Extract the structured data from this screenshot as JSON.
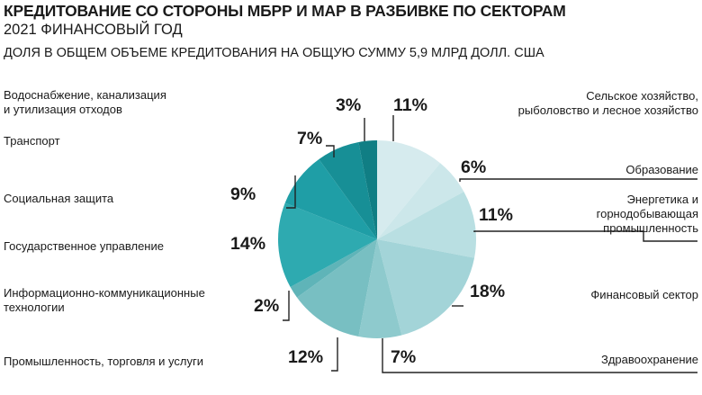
{
  "header": {
    "title": "КРЕДИТОВАНИЕ СО СТОРОНЫ МБРР И МАР В РАЗБИВКЕ ПО СЕКТОРАМ",
    "year": "2021 ФИНАНСОВЫЙ ГОД",
    "subtitle": "ДОЛЯ В ОБЩЕМ ОБЪЕМЕ КРЕДИТОВАНИЯ НА ОБЩУЮ СУММУ 5,9 МЛРД ДОЛЛ. США"
  },
  "chart_data": {
    "type": "pie",
    "title": "КРЕДИТОВАНИЕ СО СТОРОНЫ МБРР И МАР В РАЗБИВКЕ ПО СЕКТОРАМ",
    "subtitle": "ДОЛЯ В ОБЩЕМ ОБЪЕМЕ КРЕДИТОВАНИЯ НА ОБЩУЮ СУММУ 5,9 МЛРД ДОЛЛ. США",
    "unit": "%",
    "slices": [
      {
        "line1": "Сельское хозяйство,",
        "line2": "рыболовство и лесное хозяйство",
        "line3": "",
        "value": 11,
        "value_label": "11%",
        "color": "#d6ebee"
      },
      {
        "line1": "Образование",
        "line2": "",
        "line3": "",
        "value": 6,
        "value_label": "6%",
        "color": "#cce7ea"
      },
      {
        "line1": "Энергетика и",
        "line2": "горнодобывающая",
        "line3": "промышленность",
        "value": 11,
        "value_label": "11%",
        "color": "#b9dfe2"
      },
      {
        "line1": "Финансовый сектор",
        "line2": "",
        "line3": "",
        "value": 18,
        "value_label": "18%",
        "color": "#a3d4d8"
      },
      {
        "line1": "Здравоохранение",
        "line2": "",
        "line3": "",
        "value": 7,
        "value_label": "7%",
        "color": "#8ecacd"
      },
      {
        "line1": "Промышленность, торговля и услуги",
        "line2": "",
        "line3": "",
        "value": 12,
        "value_label": "12%",
        "color": "#78bfc2"
      },
      {
        "line1": "Информационно-коммуникационные",
        "line2": "технологии",
        "line3": "",
        "value": 2,
        "value_label": "2%",
        "color": "#5fb4b8"
      },
      {
        "line1": "Государственное управление",
        "line2": "",
        "line3": "",
        "value": 14,
        "value_label": "14%",
        "color": "#2eaab0"
      },
      {
        "line1": "Социальная защита",
        "line2": "",
        "line3": "",
        "value": 9,
        "value_label": "9%",
        "color": "#1f9ea6"
      },
      {
        "line1": "Транспорт",
        "line2": "",
        "line3": "",
        "value": 7,
        "value_label": "7%",
        "color": "#178f96"
      },
      {
        "line1": "Водоснабжение, канализация",
        "line2": "и утилизация отходов",
        "line3": "",
        "value": 3,
        "value_label": "3%",
        "color": "#107e84"
      }
    ]
  }
}
